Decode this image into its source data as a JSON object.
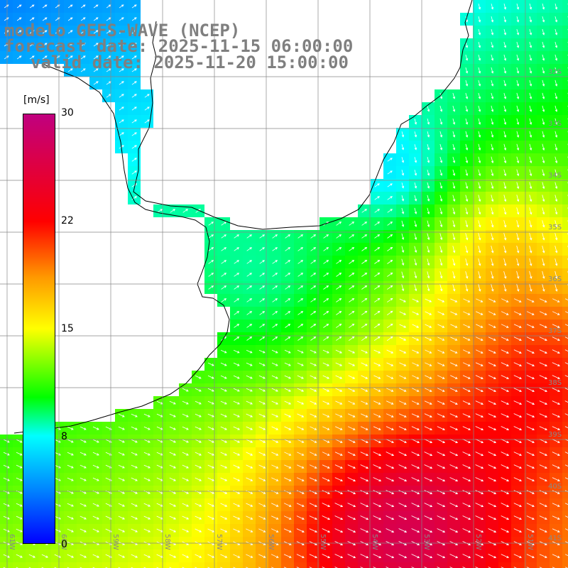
{
  "header": {
    "title": "modelo GEFS-WAVE (NCEP)",
    "forecast_date": "forecast date: 2025-11-15 06:00:00",
    "valid_date": "valid date: 2025-11-20 15:00:00"
  },
  "colorbar": {
    "units": "[m/s]",
    "ticks": [
      "30",
      "22",
      "15",
      "8",
      "0"
    ],
    "colors": [
      "#c0007f",
      "#ff0000",
      "#ff9900",
      "#ffff00",
      "#00ff00",
      "#00ffff",
      "#0080ff",
      "#0000ff"
    ],
    "range": [
      0,
      30
    ]
  },
  "grid": {
    "lat_labels": [
      "32S",
      "33S",
      "34S",
      "35S",
      "36S",
      "37S",
      "38S",
      "39S",
      "40S",
      "41S"
    ],
    "lon_labels": [
      "61W",
      "60W",
      "59W",
      "58W",
      "57W",
      "56W",
      "55W",
      "54W",
      "53W",
      "52W",
      "51W"
    ]
  },
  "colors": {
    "land": "#ffffff",
    "coast": "#000000",
    "grid": "#888888",
    "title_text": "#7f7f7f",
    "arrow": "#ffffff"
  }
}
